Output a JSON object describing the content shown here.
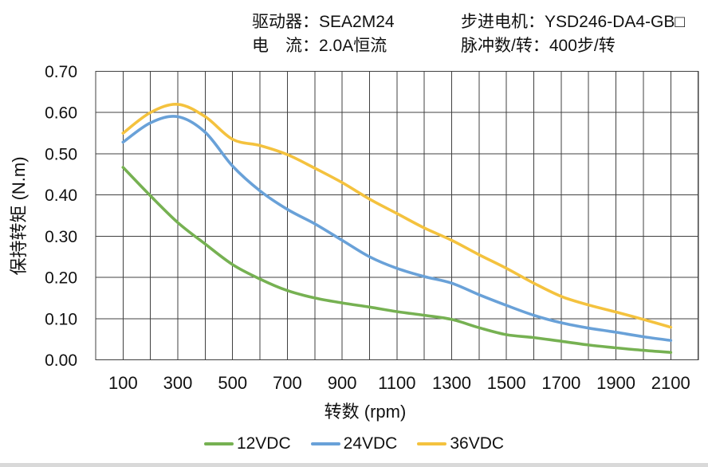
{
  "header": {
    "left_lines": [
      "驱动器：SEA2M24",
      "电　流：2.0A恒流"
    ],
    "right_lines": [
      "步进电机：YSD246-DA4-GB□",
      "脉冲数/转：400步/转"
    ]
  },
  "chart_data": {
    "type": "line",
    "title": "",
    "xlabel": "转数 (rpm)",
    "ylabel": "保持转矩 (N.m)",
    "xlim": [
      0,
      2200
    ],
    "ylim": [
      0,
      0.7
    ],
    "x_grid_step": 100,
    "y_grid_step": 0.1,
    "grid": true,
    "legend_position": "bottom",
    "x_ticks": [
      100,
      300,
      500,
      700,
      900,
      1100,
      1300,
      1500,
      1700,
      1900,
      2100
    ],
    "y_tick_labels": [
      "0.00",
      "0.10",
      "0.20",
      "0.30",
      "0.40",
      "0.50",
      "0.60",
      "0.70"
    ],
    "x": [
      100,
      200,
      300,
      400,
      500,
      600,
      700,
      800,
      900,
      1000,
      1100,
      1200,
      1300,
      1400,
      1500,
      1600,
      1700,
      1800,
      1900,
      2000,
      2100
    ],
    "series": [
      {
        "name": "12VDC",
        "color": "#76B152",
        "values": [
          0.467,
          0.398,
          0.333,
          0.281,
          0.231,
          0.196,
          0.168,
          0.15,
          0.138,
          0.128,
          0.117,
          0.108,
          0.098,
          0.078,
          0.061,
          0.054,
          0.045,
          0.036,
          0.029,
          0.023,
          0.018
        ]
      },
      {
        "name": "24VDC",
        "color": "#69A1D8",
        "values": [
          0.528,
          0.575,
          0.59,
          0.552,
          0.47,
          0.41,
          0.365,
          0.33,
          0.29,
          0.25,
          0.222,
          0.202,
          0.186,
          0.158,
          0.132,
          0.108,
          0.09,
          0.077,
          0.067,
          0.056,
          0.047
        ]
      },
      {
        "name": "36VDC",
        "color": "#F4C23E",
        "values": [
          0.55,
          0.6,
          0.62,
          0.59,
          0.535,
          0.52,
          0.498,
          0.465,
          0.43,
          0.39,
          0.355,
          0.32,
          0.29,
          0.255,
          0.222,
          0.186,
          0.154,
          0.133,
          0.116,
          0.098,
          0.079
        ]
      }
    ]
  },
  "style_colors": {
    "grid": "#404040",
    "text": "#111111",
    "window_edge": "#d9d9d9"
  }
}
